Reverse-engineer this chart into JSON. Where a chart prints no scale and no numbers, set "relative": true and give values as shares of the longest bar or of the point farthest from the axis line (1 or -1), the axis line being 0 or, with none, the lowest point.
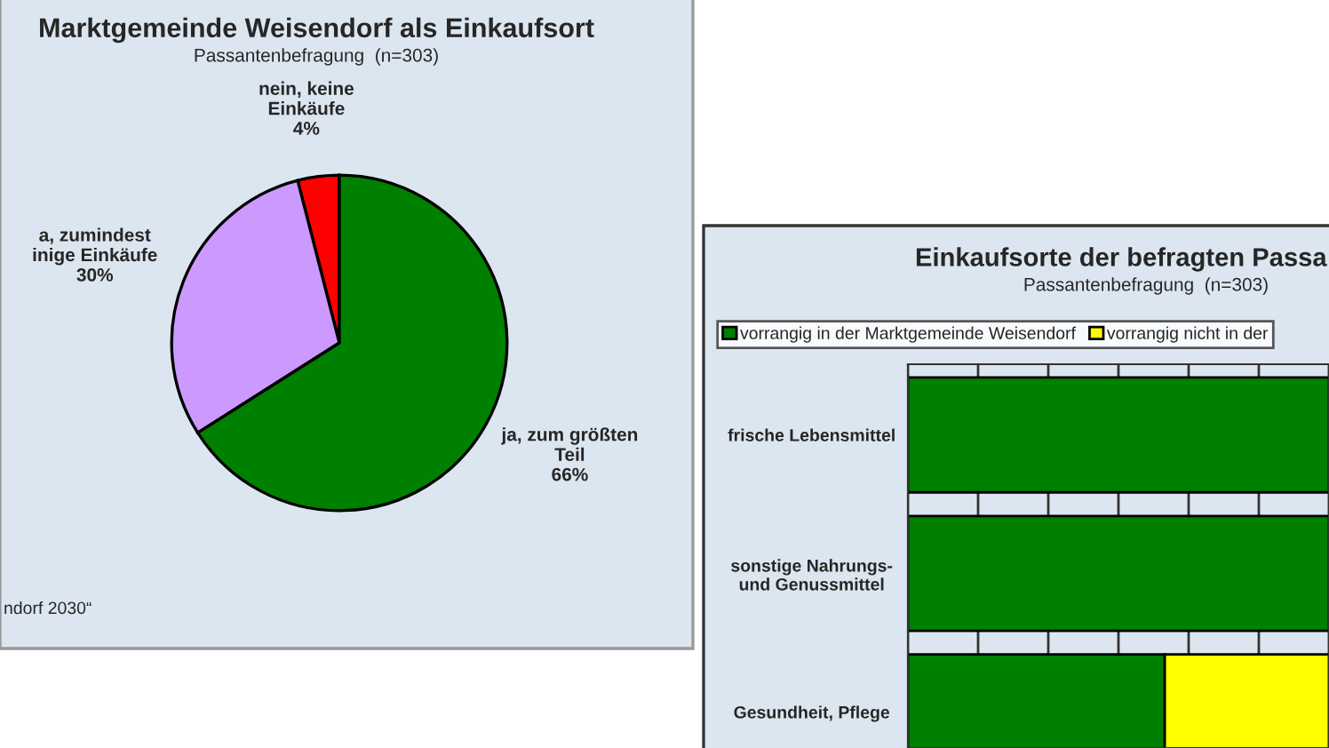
{
  "chart_data": [
    {
      "type": "pie",
      "title": "Marktgemeinde Weisendorf als Einkaufsort",
      "subtitle": "Passantenbefragung  (n=303)",
      "categories": [
        "nein, keine\nEinkäufe",
        "a, zumindest\ninige Einkäufe",
        "ja, zum größten\nTeil"
      ],
      "values": [
        4,
        30,
        66
      ],
      "colors": [
        "#ff0000",
        "#cc99ff",
        "#008000"
      ],
      "value_labels": [
        "4%",
        "30%",
        "66%"
      ],
      "annotations": [
        "ndorf 2030“"
      ]
    },
    {
      "type": "bar",
      "orientation": "horizontal",
      "stacked": true,
      "relative": true,
      "title": "Einkaufsorte der befragten Passa",
      "subtitle": "Passantenbefragung  (n=303)",
      "categories": [
        "frische Lebensmittel",
        "sonstige Nahrungs-\nund Genussmittel",
        "Gesundheit, Pflege"
      ],
      "series": [
        {
          "name": "vorrangig in der Marktgemeinde Weisendorf",
          "color": "#008000",
          "values": [
            1,
            1,
            0.61
          ]
        },
        {
          "name": "vorrangig nicht in der",
          "color": "#ffff00",
          "values": [
            null,
            null,
            0.39
          ]
        }
      ],
      "grid": "x",
      "legend": "top"
    }
  ]
}
